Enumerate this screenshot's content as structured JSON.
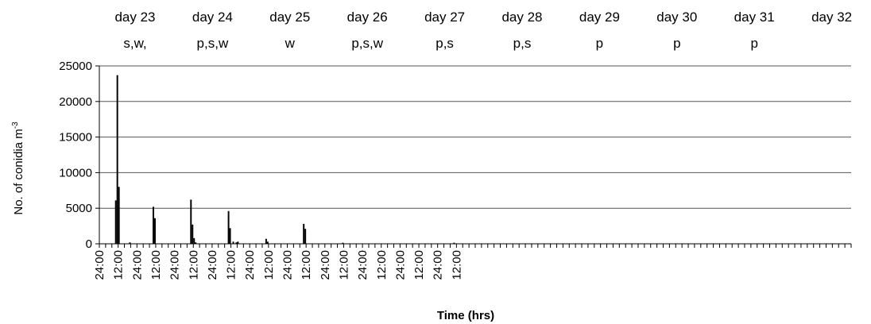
{
  "chart_data": {
    "type": "bar",
    "xlabel": "Time (hrs)",
    "ylabel": "No. of conidia  m",
    "ylabel_sup": "-3",
    "ylim": [
      0,
      25000
    ],
    "yticks": [
      "0",
      "5000",
      "10000",
      "15000",
      "20000",
      "25000"
    ],
    "grid": true,
    "days": [
      {
        "day": "day 23",
        "conditions": "s,w,"
      },
      {
        "day": "day 24",
        "conditions": "p,s,w"
      },
      {
        "day": "day 25",
        "conditions": "w"
      },
      {
        "day": "day 26",
        "conditions": "p,s,w"
      },
      {
        "day": "day 27",
        "conditions": "p,s"
      },
      {
        "day": "day 28",
        "conditions": "p,s"
      },
      {
        "day": "day 29",
        "conditions": "p"
      },
      {
        "day": "day 30",
        "conditions": "p"
      },
      {
        "day": "day 31",
        "conditions": "p"
      },
      {
        "day": "day 32",
        "conditions": ""
      }
    ],
    "xtick_labels": [
      "24:00",
      "12:00",
      "24:00",
      "12:00",
      "24:00",
      "12:00",
      "24:00",
      "12:00",
      "24:00",
      "12:00",
      "24:00",
      "12:00",
      "24:00",
      "12:00",
      "24:00",
      "12:00",
      "24:00",
      "12:00",
      "24:00",
      "12:00"
    ],
    "hours_total": 480,
    "bars": [
      {
        "hour": 10,
        "value": 6100
      },
      {
        "hour": 11,
        "value": 23700
      },
      {
        "hour": 12,
        "value": 8000
      },
      {
        "hour": 19,
        "value": 200
      },
      {
        "hour": 34,
        "value": 5200
      },
      {
        "hour": 35,
        "value": 3600
      },
      {
        "hour": 58,
        "value": 6200
      },
      {
        "hour": 59,
        "value": 2700
      },
      {
        "hour": 60,
        "value": 800
      },
      {
        "hour": 61,
        "value": 200
      },
      {
        "hour": 82,
        "value": 4600
      },
      {
        "hour": 83,
        "value": 2200
      },
      {
        "hour": 85,
        "value": 300
      },
      {
        "hour": 87,
        "value": 200
      },
      {
        "hour": 88,
        "value": 300
      },
      {
        "hour": 106,
        "value": 700
      },
      {
        "hour": 107,
        "value": 300
      },
      {
        "hour": 130,
        "value": 2800
      },
      {
        "hour": 131,
        "value": 2100
      },
      {
        "hour": 155,
        "value": 150
      },
      {
        "hour": 226,
        "value": 150
      }
    ]
  }
}
